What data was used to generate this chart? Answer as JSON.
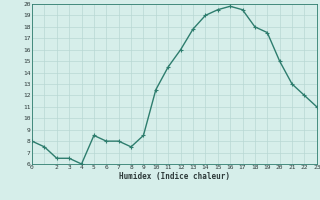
{
  "x": [
    0,
    1,
    2,
    3,
    4,
    5,
    6,
    7,
    8,
    9,
    10,
    11,
    12,
    13,
    14,
    15,
    16,
    17,
    18,
    19,
    20,
    21,
    22,
    23
  ],
  "y": [
    8,
    7.5,
    6.5,
    6.5,
    6,
    8.5,
    8,
    8,
    7.5,
    8.5,
    12.5,
    14.5,
    16,
    17.8,
    19,
    19.5,
    19.8,
    19.5,
    18,
    17.5,
    15,
    13,
    12,
    11
  ],
  "xlabel": "Humidex (Indice chaleur)",
  "xlim": [
    0,
    23
  ],
  "ylim": [
    6,
    20
  ],
  "yticks": [
    6,
    7,
    8,
    9,
    10,
    11,
    12,
    13,
    14,
    15,
    16,
    17,
    18,
    19,
    20
  ],
  "xticks": [
    0,
    1,
    2,
    3,
    4,
    5,
    6,
    7,
    8,
    9,
    10,
    11,
    12,
    13,
    14,
    15,
    16,
    17,
    18,
    19,
    20,
    21,
    22,
    23
  ],
  "xtick_labels": [
    "0",
    "",
    "2",
    "3",
    "4",
    "5",
    "6",
    "7",
    "8",
    "9",
    "10",
    "11",
    "12",
    "13",
    "14",
    "15",
    "16",
    "17",
    "18",
    "19",
    "20",
    "21",
    "22",
    "23"
  ],
  "line_color": "#2e7d6e",
  "bg_color": "#d6eeea",
  "grid_color": "#b8d8d4",
  "marker_size": 3,
  "line_width": 1.0
}
